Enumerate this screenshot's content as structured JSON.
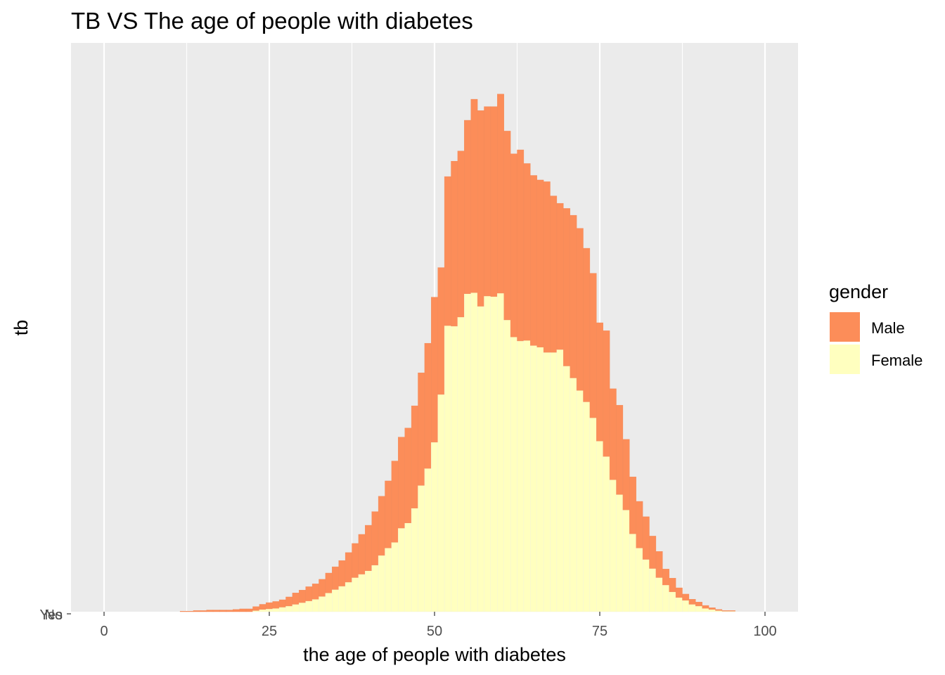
{
  "chart_data": {
    "type": "bar",
    "stacked": true,
    "title": "TB VS The age of people with diabetes",
    "xlabel": "the age of people with diabetes",
    "ylabel": "tb",
    "xlim": [
      -5,
      105
    ],
    "x_ticks": [
      0,
      25,
      50,
      75,
      100
    ],
    "y_tick_labels": [
      "No",
      "Yes"
    ],
    "ylim": [
      0,
      1
    ],
    "bin_width": 1,
    "grid": true,
    "legend": {
      "title": "gender",
      "position": "right"
    },
    "x": [
      12,
      13,
      14,
      15,
      16,
      17,
      18,
      19,
      20,
      21,
      22,
      23,
      24,
      25,
      26,
      27,
      28,
      29,
      30,
      31,
      32,
      33,
      34,
      35,
      36,
      37,
      38,
      39,
      40,
      41,
      42,
      43,
      44,
      45,
      46,
      47,
      48,
      49,
      50,
      51,
      52,
      53,
      54,
      55,
      56,
      57,
      58,
      59,
      60,
      61,
      62,
      63,
      64,
      65,
      66,
      67,
      68,
      69,
      70,
      71,
      72,
      73,
      74,
      75,
      76,
      77,
      78,
      79,
      80,
      81,
      82,
      83,
      84,
      85,
      86,
      87,
      88,
      89,
      90,
      91,
      92,
      93,
      94,
      95
    ],
    "series": [
      {
        "name": "Male",
        "color": "#FC8D59",
        "values": [
          0.001,
          0.001,
          0.002,
          0.002,
          0.003,
          0.003,
          0.003,
          0.003,
          0.004,
          0.005,
          0.005,
          0.007,
          0.009,
          0.011,
          0.012,
          0.013,
          0.016,
          0.02,
          0.022,
          0.025,
          0.027,
          0.03,
          0.035,
          0.04,
          0.045,
          0.052,
          0.06,
          0.07,
          0.08,
          0.094,
          0.104,
          0.118,
          0.143,
          0.16,
          0.167,
          0.18,
          0.198,
          0.22,
          0.255,
          0.223,
          0.262,
          0.29,
          0.292,
          0.305,
          0.34,
          0.344,
          0.333,
          0.334,
          0.35,
          0.332,
          0.322,
          0.336,
          0.311,
          0.299,
          0.294,
          0.3,
          0.275,
          0.257,
          0.277,
          0.286,
          0.285,
          0.27,
          0.254,
          0.208,
          0.221,
          0.16,
          0.157,
          0.124,
          0.1,
          0.082,
          0.075,
          0.057,
          0.046,
          0.028,
          0.024,
          0.017,
          0.011,
          0.009,
          0.007,
          0.005,
          0.003,
          0.002,
          0.001,
          0.001
        ]
      },
      {
        "name": "Female",
        "color": "#FFFFBF",
        "values": [
          0.0,
          0.0,
          0.0,
          0.0,
          0.0,
          0.0,
          0.0,
          0.0,
          0.0,
          0.0,
          0.0,
          0.002,
          0.004,
          0.005,
          0.006,
          0.008,
          0.01,
          0.013,
          0.016,
          0.019,
          0.022,
          0.027,
          0.033,
          0.039,
          0.045,
          0.052,
          0.06,
          0.066,
          0.072,
          0.082,
          0.099,
          0.112,
          0.122,
          0.147,
          0.156,
          0.182,
          0.222,
          0.252,
          0.298,
          0.382,
          0.503,
          0.502,
          0.518,
          0.559,
          0.561,
          0.537,
          0.555,
          0.554,
          0.56,
          0.513,
          0.483,
          0.476,
          0.477,
          0.468,
          0.465,
          0.456,
          0.456,
          0.461,
          0.432,
          0.411,
          0.389,
          0.369,
          0.341,
          0.3,
          0.273,
          0.232,
          0.206,
          0.179,
          0.137,
          0.112,
          0.092,
          0.076,
          0.06,
          0.047,
          0.035,
          0.025,
          0.02,
          0.013,
          0.01,
          0.006,
          0.004,
          0.002,
          0.001,
          0.001
        ]
      }
    ]
  }
}
